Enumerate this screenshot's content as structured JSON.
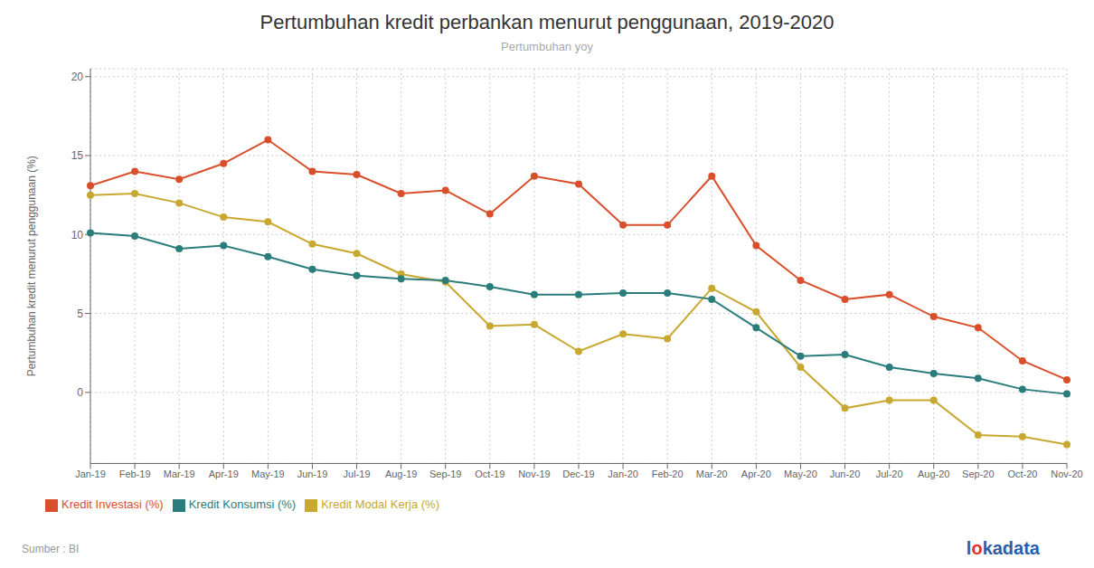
{
  "chart_data": {
    "type": "line",
    "title": "Pertumbuhan kredit perbankan menurut penggunaan, 2019-2020",
    "subtitle": "Pertumbuhan yoy",
    "y_label": "Pertumbuhan kredit menurut penggunaan (%)",
    "annotations": [
      "Sumber : BI",
      "lokadata"
    ],
    "categories": [
      "Jan-19",
      "Feb-19",
      "Mar-19",
      "Apr-19",
      "May-19",
      "Jun-19",
      "Jul-19",
      "Aug-19",
      "Sep-19",
      "Oct-19",
      "Nov-19",
      "Dec-19",
      "Jan-20",
      "Feb-20",
      "Mar-20",
      "Apr-20",
      "May-20",
      "Jun-20",
      "Jul-20",
      "Aug-20",
      "Sep-20",
      "Oct-20",
      "Nov-20"
    ],
    "series": [
      {
        "name": "Kredit Investasi (%)",
        "color": "#D94F2B",
        "values": [
          13.1,
          14.0,
          13.5,
          14.5,
          16.0,
          14.0,
          13.8,
          12.6,
          12.8,
          11.3,
          13.7,
          13.2,
          10.6,
          10.6,
          13.7,
          9.3,
          7.1,
          5.9,
          6.2,
          4.8,
          4.1,
          2.0,
          0.8
        ]
      },
      {
        "name": "Kredit Modal Kerja (%)",
        "color": "#C8A830",
        "values": [
          12.5,
          12.6,
          12.0,
          11.1,
          10.8,
          9.4,
          8.8,
          7.5,
          7.0,
          4.2,
          4.3,
          2.6,
          3.7,
          3.4,
          6.6,
          5.1,
          1.6,
          -1.0,
          -0.5,
          -0.5,
          -2.7,
          -2.8,
          -3.3
        ]
      },
      {
        "name": "Kredit Konsumsi (%)",
        "color": "#2A7D7B",
        "values": [
          10.1,
          9.9,
          9.1,
          9.3,
          8.6,
          7.8,
          7.4,
          7.2,
          7.1,
          6.7,
          6.2,
          6.2,
          6.3,
          6.3,
          5.9,
          4.1,
          2.3,
          2.4,
          1.6,
          1.2,
          0.9,
          0.2,
          -0.1
        ]
      }
    ],
    "ylim": [
      -4.5,
      20.5
    ],
    "yticks": [
      0,
      5,
      10,
      15,
      20
    ],
    "grid": true,
    "legend": "bottom",
    "marker": "circle"
  }
}
